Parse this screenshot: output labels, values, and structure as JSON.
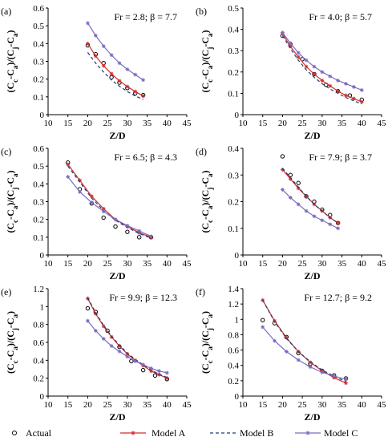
{
  "chart_data": [
    {
      "type": "line",
      "panel_label": "(a)",
      "annotation": "Fr = 2.8; β = 7.7",
      "xlabel": "Z/D",
      "ylabel": "(C_c-C_a)/(C_j-C_a)",
      "xlim": [
        10,
        45
      ],
      "ylim": [
        0,
        0.6
      ],
      "xticks": [
        10,
        15,
        20,
        25,
        30,
        35,
        40,
        45
      ],
      "xtick_labels": [
        "10",
        "15",
        "20",
        "25",
        "30",
        "35",
        "40",
        "45"
      ],
      "yticks": [
        0,
        0.1,
        0.2,
        0.3,
        0.4,
        0.5,
        0.6
      ],
      "ytick_labels": [
        "0",
        "0.1",
        "0.2",
        "0.3",
        "0.4",
        "0.5",
        "0.6"
      ],
      "grid": false,
      "series": [
        {
          "name": "Actual",
          "x": [
            20,
            22,
            24,
            26,
            28,
            30,
            32,
            34
          ],
          "y": [
            0.39,
            0.34,
            0.29,
            0.21,
            0.18,
            0.15,
            0.12,
            0.11
          ]
        },
        {
          "name": "Model A",
          "x": [
            20,
            22,
            24,
            26,
            28,
            30,
            32,
            34
          ],
          "y": [
            0.4,
            0.33,
            0.275,
            0.23,
            0.19,
            0.158,
            0.13,
            0.105
          ]
        },
        {
          "name": "Model B",
          "x": [
            20,
            22,
            24,
            26,
            28,
            30,
            32,
            34
          ],
          "y": [
            0.35,
            0.29,
            0.24,
            0.195,
            0.16,
            0.13,
            0.105,
            0.085
          ]
        },
        {
          "name": "Model C",
          "x": [
            20,
            22,
            24,
            26,
            28,
            30,
            32,
            34
          ],
          "y": [
            0.515,
            0.445,
            0.385,
            0.335,
            0.29,
            0.255,
            0.225,
            0.195
          ]
        }
      ]
    },
    {
      "type": "line",
      "panel_label": "(b)",
      "annotation": "Fr = 4.0; β = 5.7",
      "xlabel": "Z/D",
      "ylabel": "(C_c-C_a)/(C_j-C_a)",
      "xlim": [
        10,
        45
      ],
      "ylim": [
        0,
        0.5
      ],
      "xticks": [
        10,
        15,
        20,
        25,
        30,
        35,
        40,
        45
      ],
      "xtick_labels": [
        "10",
        "15",
        "20",
        "25",
        "30",
        "35",
        "40",
        "45"
      ],
      "yticks": [
        0,
        0.1,
        0.2,
        0.3,
        0.4,
        0.5
      ],
      "ytick_labels": [
        "0",
        "0.1",
        "0.2",
        "0.3",
        "0.4",
        "0.5"
      ],
      "grid": false,
      "series": [
        {
          "name": "Actual",
          "x": [
            20,
            22,
            25,
            28,
            31,
            34,
            37,
            40
          ],
          "y": [
            0.37,
            0.33,
            0.26,
            0.19,
            0.14,
            0.11,
            0.09,
            0.07
          ]
        },
        {
          "name": "Model A",
          "x": [
            20,
            22,
            24,
            26,
            28,
            30,
            32,
            34,
            36,
            38,
            40
          ],
          "y": [
            0.38,
            0.32,
            0.27,
            0.225,
            0.19,
            0.16,
            0.135,
            0.11,
            0.09,
            0.075,
            0.06
          ]
        },
        {
          "name": "Model B",
          "x": [
            20,
            22,
            24,
            26,
            28,
            30,
            32,
            34,
            36,
            38,
            40
          ],
          "y": [
            0.37,
            0.31,
            0.255,
            0.21,
            0.175,
            0.145,
            0.12,
            0.1,
            0.08,
            0.065,
            0.05
          ]
        },
        {
          "name": "Model C",
          "x": [
            20,
            22,
            24,
            26,
            28,
            30,
            32,
            34,
            36,
            38,
            40
          ],
          "y": [
            0.385,
            0.335,
            0.29,
            0.255,
            0.225,
            0.2,
            0.18,
            0.16,
            0.145,
            0.13,
            0.115
          ]
        }
      ]
    },
    {
      "type": "line",
      "panel_label": "(c)",
      "annotation": "Fr = 6.5; β = 4.3",
      "xlabel": "Z/D",
      "ylabel": "(C_c-C_a)/(C_j-C_a)",
      "xlim": [
        10,
        45
      ],
      "ylim": [
        0,
        0.6
      ],
      "xticks": [
        10,
        15,
        20,
        25,
        30,
        35,
        40,
        45
      ],
      "xtick_labels": [
        "10",
        "15",
        "20",
        "25",
        "30",
        "35",
        "40",
        "45"
      ],
      "yticks": [
        0,
        0.1,
        0.2,
        0.3,
        0.4,
        0.5,
        0.6
      ],
      "ytick_labels": [
        "0",
        "0.1",
        "0.2",
        "0.3",
        "0.4",
        "0.5",
        "0.6"
      ],
      "grid": false,
      "series": [
        {
          "name": "Actual",
          "x": [
            15,
            18,
            21,
            24,
            27,
            30,
            33,
            36
          ],
          "y": [
            0.52,
            0.37,
            0.29,
            0.21,
            0.16,
            0.13,
            0.1,
            0.1
          ]
        },
        {
          "name": "Model A",
          "x": [
            15,
            18,
            21,
            24,
            27,
            30,
            33,
            36
          ],
          "y": [
            0.51,
            0.42,
            0.33,
            0.26,
            0.2,
            0.16,
            0.125,
            0.1
          ]
        },
        {
          "name": "Model B",
          "x": [
            15,
            18,
            21,
            24,
            27,
            30,
            33,
            36
          ],
          "y": [
            0.5,
            0.41,
            0.32,
            0.25,
            0.195,
            0.155,
            0.12,
            0.095
          ]
        },
        {
          "name": "Model C",
          "x": [
            15,
            18,
            21,
            24,
            27,
            30,
            33,
            36
          ],
          "y": [
            0.44,
            0.355,
            0.295,
            0.245,
            0.2,
            0.165,
            0.135,
            0.105
          ]
        }
      ]
    },
    {
      "type": "line",
      "panel_label": "(d)",
      "annotation": "Fr = 7.9; β = 3.7",
      "xlabel": "Z/D",
      "ylabel": "(C_c-C_a)/(C_j-C_a)",
      "xlim": [
        10,
        45
      ],
      "ylim": [
        0,
        0.4
      ],
      "xticks": [
        10,
        15,
        20,
        25,
        30,
        35,
        40,
        45
      ],
      "xtick_labels": [
        "10",
        "15",
        "20",
        "25",
        "30",
        "35",
        "40",
        "45"
      ],
      "yticks": [
        0,
        0.1,
        0.2,
        0.3,
        0.4
      ],
      "ytick_labels": [
        "0",
        "0.1",
        "0.2",
        "0.3",
        "0.4"
      ],
      "grid": false,
      "series": [
        {
          "name": "Actual",
          "x": [
            20,
            22,
            24,
            26,
            28,
            30,
            32,
            34
          ],
          "y": [
            0.37,
            0.3,
            0.27,
            0.22,
            0.2,
            0.17,
            0.15,
            0.12
          ]
        },
        {
          "name": "Model A",
          "x": [
            20,
            22,
            24,
            26,
            28,
            30,
            32,
            34
          ],
          "y": [
            0.32,
            0.285,
            0.25,
            0.22,
            0.19,
            0.165,
            0.14,
            0.12
          ]
        },
        {
          "name": "Model B",
          "x": [
            20,
            22,
            24,
            26,
            28,
            30,
            32,
            34
          ],
          "y": [
            0.325,
            0.29,
            0.255,
            0.22,
            0.19,
            0.165,
            0.14,
            0.12
          ]
        },
        {
          "name": "Model C",
          "x": [
            20,
            22,
            24,
            26,
            28,
            30,
            32,
            34
          ],
          "y": [
            0.245,
            0.215,
            0.19,
            0.165,
            0.145,
            0.13,
            0.115,
            0.1
          ]
        }
      ]
    },
    {
      "type": "line",
      "panel_label": "(e)",
      "annotation": "Fr = 9.9; β = 12.3",
      "xlabel": "Z/D",
      "ylabel": "(C_c-C_a)/(C_j-C_a)",
      "xlim": [
        10,
        45
      ],
      "ylim": [
        0,
        1.2
      ],
      "xticks": [
        10,
        15,
        20,
        25,
        30,
        35,
        40,
        45
      ],
      "xtick_labels": [
        "10",
        "15",
        "20",
        "25",
        "30",
        "35",
        "40",
        "45"
      ],
      "yticks": [
        0,
        0.2,
        0.4,
        0.6,
        0.8,
        1,
        1.2
      ],
      "ytick_labels": [
        "0",
        "0.2",
        "0.4",
        "0.6",
        "0.8",
        "1",
        "1.2"
      ],
      "grid": false,
      "series": [
        {
          "name": "Actual",
          "x": [
            20,
            22,
            25,
            28,
            31,
            34,
            37,
            40
          ],
          "y": [
            0.98,
            0.94,
            0.73,
            0.55,
            0.39,
            0.29,
            0.23,
            0.19
          ]
        },
        {
          "name": "Model A",
          "x": [
            20,
            22,
            24,
            26,
            28,
            30,
            32,
            34,
            36,
            38,
            40
          ],
          "y": [
            1.09,
            0.92,
            0.78,
            0.66,
            0.56,
            0.47,
            0.4,
            0.34,
            0.28,
            0.24,
            0.2
          ]
        },
        {
          "name": "Model B",
          "x": [
            20,
            22,
            24,
            26,
            28,
            30,
            32,
            34,
            36,
            38,
            40
          ],
          "y": [
            1.1,
            0.93,
            0.79,
            0.67,
            0.57,
            0.48,
            0.41,
            0.35,
            0.29,
            0.245,
            0.21
          ]
        },
        {
          "name": "Model C",
          "x": [
            20,
            22,
            24,
            26,
            28,
            30,
            32,
            34,
            36,
            38,
            40
          ],
          "y": [
            0.84,
            0.73,
            0.64,
            0.56,
            0.5,
            0.44,
            0.39,
            0.35,
            0.31,
            0.28,
            0.26
          ]
        }
      ]
    },
    {
      "type": "line",
      "panel_label": "(f)",
      "annotation": "Fr = 12.7; β = 9.2",
      "xlabel": "Z/D",
      "ylabel": "(C_c-C_a)/(C_j-C_a)",
      "xlim": [
        10,
        45
      ],
      "ylim": [
        0,
        1.4
      ],
      "xticks": [
        10,
        15,
        20,
        25,
        30,
        35,
        40,
        45
      ],
      "xtick_labels": [
        "10",
        "15",
        "20",
        "25",
        "30",
        "35",
        "40",
        "45"
      ],
      "yticks": [
        0,
        0.2,
        0.4,
        0.6,
        0.8,
        1,
        1.2,
        1.4
      ],
      "ytick_labels": [
        "0",
        "0.2",
        "0.4",
        "0.6",
        "0.8",
        "1",
        "1.2",
        "1.4"
      ],
      "grid": false,
      "series": [
        {
          "name": "Actual",
          "x": [
            15,
            18,
            21,
            24,
            27,
            30,
            33,
            36
          ],
          "y": [
            0.99,
            0.95,
            0.77,
            0.56,
            0.42,
            0.33,
            0.27,
            0.23
          ]
        },
        {
          "name": "Model A",
          "x": [
            15,
            18,
            21,
            24,
            27,
            30,
            33,
            36
          ],
          "y": [
            1.25,
            0.98,
            0.76,
            0.58,
            0.44,
            0.33,
            0.24,
            0.17
          ]
        },
        {
          "name": "Model B",
          "x": [
            15,
            18,
            21,
            24,
            27,
            30,
            33,
            36
          ],
          "y": [
            1.25,
            0.97,
            0.75,
            0.58,
            0.45,
            0.34,
            0.26,
            0.19
          ]
        },
        {
          "name": "Model C",
          "x": [
            15,
            18,
            21,
            24,
            27,
            30,
            33,
            36
          ],
          "y": [
            0.9,
            0.72,
            0.58,
            0.47,
            0.38,
            0.31,
            0.26,
            0.22
          ]
        }
      ]
    }
  ],
  "legend": {
    "placement": "bottom",
    "entries": [
      {
        "name": "Actual",
        "marker": "open-circle"
      },
      {
        "name": "Model A",
        "marker": "star-line"
      },
      {
        "name": "Model B",
        "marker": "dashed-line"
      },
      {
        "name": "Model C",
        "marker": "star-line"
      }
    ]
  },
  "colors": {
    "Actual": "#000000",
    "Model A": "#d02f2f",
    "Model B": "#1f3d6e",
    "Model C": "#7b6bc0"
  }
}
